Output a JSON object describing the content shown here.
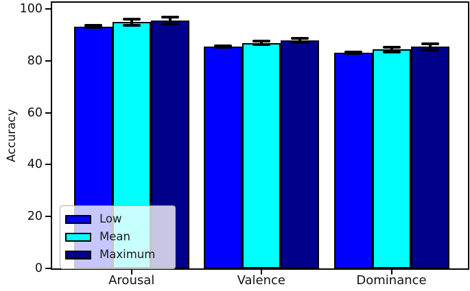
{
  "chart_data": {
    "type": "bar",
    "title": "",
    "xlabel": "",
    "ylabel": "Accuracy",
    "categories": [
      "Arousal",
      "Valence",
      "Dominance"
    ],
    "series": [
      {
        "name": "Low",
        "color": "#0000ff",
        "values": [
          93.3,
          85.6,
          83.2
        ],
        "errors": [
          0.5,
          0.3,
          0.3
        ]
      },
      {
        "name": "Mean",
        "color": "#00ffff",
        "values": [
          95.0,
          86.9,
          84.4
        ],
        "errors": [
          1.2,
          0.7,
          0.9
        ]
      },
      {
        "name": "Maximum",
        "color": "#00008b",
        "values": [
          95.5,
          88.0,
          85.4
        ],
        "errors": [
          1.3,
          0.8,
          1.3
        ]
      }
    ],
    "ylim": [
      0,
      102.4
    ],
    "yticks": [
      0,
      20,
      40,
      60,
      80,
      100
    ],
    "bar_edge_color": "#000000",
    "error_bar_color": "#000000",
    "grid": false,
    "legend": {
      "position": "lower left",
      "labels": [
        "Low",
        "Mean",
        "Maximum"
      ]
    }
  }
}
